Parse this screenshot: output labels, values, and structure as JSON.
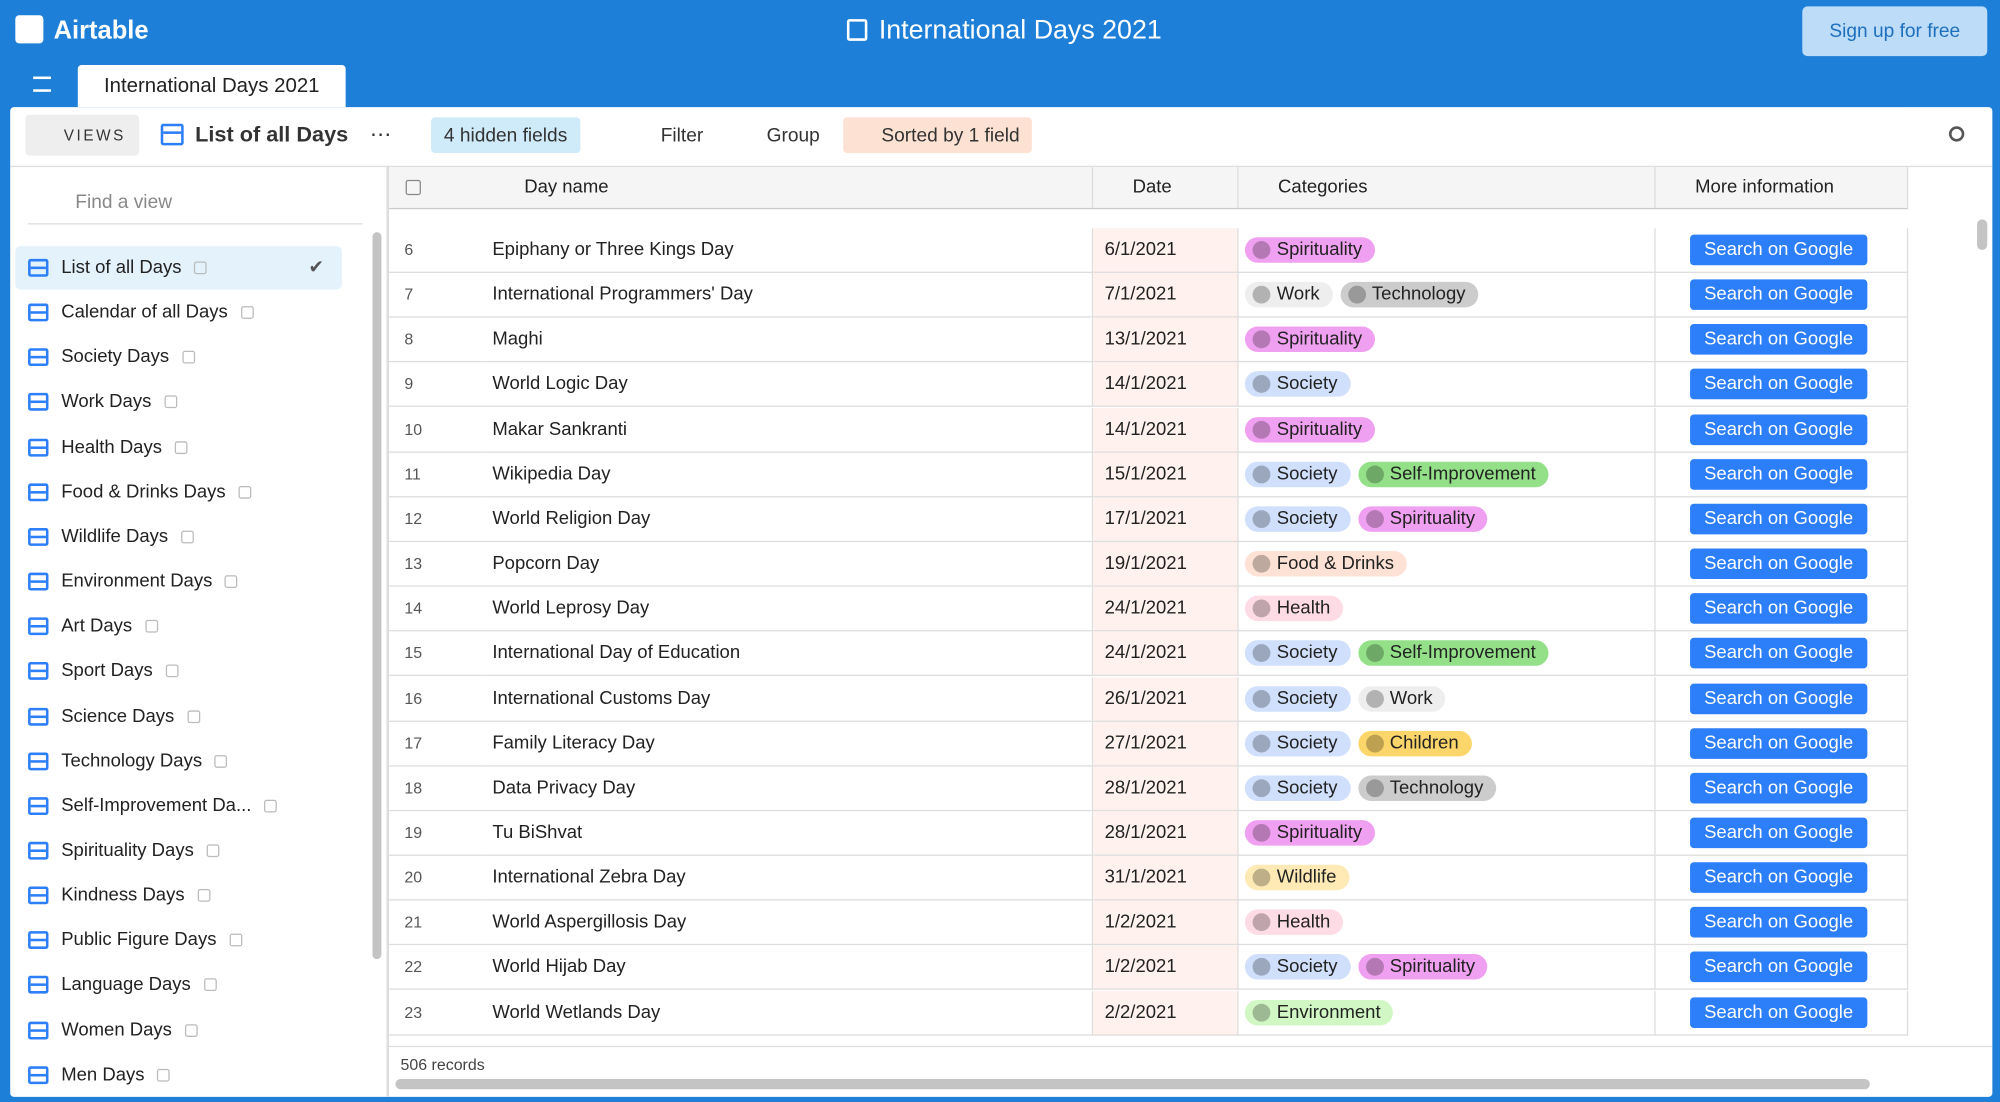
{
  "header": {
    "logo": "Airtable",
    "title": "International Days 2021",
    "signup": "Sign up for free"
  },
  "tab": "International Days 2021",
  "toolbar": {
    "views": "VIEWS",
    "current_view": "List of all Days",
    "hidden_fields": "4 hidden fields",
    "filter": "Filter",
    "group": "Group",
    "sort": "Sorted by 1 field"
  },
  "sidebar": {
    "search_placeholder": "Find a view",
    "views": [
      "List of all Days",
      "Calendar of all Days",
      "Society Days",
      "Work Days",
      "Health Days",
      "Food & Drinks Days",
      "Wildlife Days",
      "Environment Days",
      "Art Days",
      "Sport Days",
      "Science Days",
      "Technology Days",
      "Self-Improvement Da...",
      "Spirituality Days",
      "Kindness Days",
      "Public Figure Days",
      "Language Days",
      "Women Days",
      "Men Days"
    ]
  },
  "table": {
    "columns": [
      "Day name",
      "Date",
      "Categories",
      "More information"
    ],
    "button": "Search on Google",
    "rows": [
      {
        "num": "6",
        "name": "Epiphany or Three Kings Day",
        "date": "6/1/2021",
        "tags": [
          {
            "label": "Spirituality",
            "color": "#f0a0f0"
          }
        ]
      },
      {
        "num": "7",
        "name": "International Programmers' Day",
        "date": "7/1/2021",
        "tags": [
          {
            "label": "Work",
            "color": "#eeeeee"
          },
          {
            "label": "Technology",
            "color": "#cccccc"
          }
        ]
      },
      {
        "num": "8",
        "name": "Maghi",
        "date": "13/1/2021",
        "tags": [
          {
            "label": "Spirituality",
            "color": "#f0a0f0"
          }
        ]
      },
      {
        "num": "9",
        "name": "World Logic Day",
        "date": "14/1/2021",
        "tags": [
          {
            "label": "Society",
            "color": "#cfdffc"
          }
        ]
      },
      {
        "num": "10",
        "name": "Makar Sankranti",
        "date": "14/1/2021",
        "tags": [
          {
            "label": "Spirituality",
            "color": "#f0a0f0"
          }
        ]
      },
      {
        "num": "11",
        "name": "Wikipedia Day",
        "date": "15/1/2021",
        "tags": [
          {
            "label": "Society",
            "color": "#cfdffc"
          },
          {
            "label": "Self-Improvement",
            "color": "#93e088"
          }
        ]
      },
      {
        "num": "12",
        "name": "World Religion Day",
        "date": "17/1/2021",
        "tags": [
          {
            "label": "Society",
            "color": "#cfdffc"
          },
          {
            "label": "Spirituality",
            "color": "#f0a0f0"
          }
        ]
      },
      {
        "num": "13",
        "name": "Popcorn Day",
        "date": "19/1/2021",
        "tags": [
          {
            "label": "Food & Drinks",
            "color": "#fee2d5"
          }
        ]
      },
      {
        "num": "14",
        "name": "World Leprosy Day",
        "date": "24/1/2021",
        "tags": [
          {
            "label": "Health",
            "color": "#ffdce5"
          }
        ]
      },
      {
        "num": "15",
        "name": "International Day of Education",
        "date": "24/1/2021",
        "tags": [
          {
            "label": "Society",
            "color": "#cfdffc"
          },
          {
            "label": "Self-Improvement",
            "color": "#93e088"
          }
        ]
      },
      {
        "num": "16",
        "name": "International Customs Day",
        "date": "26/1/2021",
        "tags": [
          {
            "label": "Society",
            "color": "#cfdffc"
          },
          {
            "label": "Work",
            "color": "#eeeeee"
          }
        ]
      },
      {
        "num": "17",
        "name": "Family Literacy Day",
        "date": "27/1/2021",
        "tags": [
          {
            "label": "Society",
            "color": "#cfdffc"
          },
          {
            "label": "Children",
            "color": "#fcd66b"
          }
        ]
      },
      {
        "num": "18",
        "name": "Data Privacy Day",
        "date": "28/1/2021",
        "tags": [
          {
            "label": "Society",
            "color": "#cfdffc"
          },
          {
            "label": "Technology",
            "color": "#cccccc"
          }
        ]
      },
      {
        "num": "19",
        "name": "Tu BiShvat",
        "date": "28/1/2021",
        "tags": [
          {
            "label": "Spirituality",
            "color": "#f0a0f0"
          }
        ]
      },
      {
        "num": "20",
        "name": "International Zebra Day",
        "date": "31/1/2021",
        "tags": [
          {
            "label": "Wildlife",
            "color": "#ffeab6"
          }
        ]
      },
      {
        "num": "21",
        "name": "World Aspergillosis Day",
        "date": "1/2/2021",
        "tags": [
          {
            "label": "Health",
            "color": "#ffdce5"
          }
        ]
      },
      {
        "num": "22",
        "name": "World Hijab Day",
        "date": "1/2/2021",
        "tags": [
          {
            "label": "Society",
            "color": "#cfdffc"
          },
          {
            "label": "Spirituality",
            "color": "#f0a0f0"
          }
        ]
      },
      {
        "num": "23",
        "name": "World Wetlands Day",
        "date": "2/2/2021",
        "tags": [
          {
            "label": "Environment",
            "color": "#d1f7c4"
          }
        ]
      }
    ],
    "records": "506 records"
  }
}
